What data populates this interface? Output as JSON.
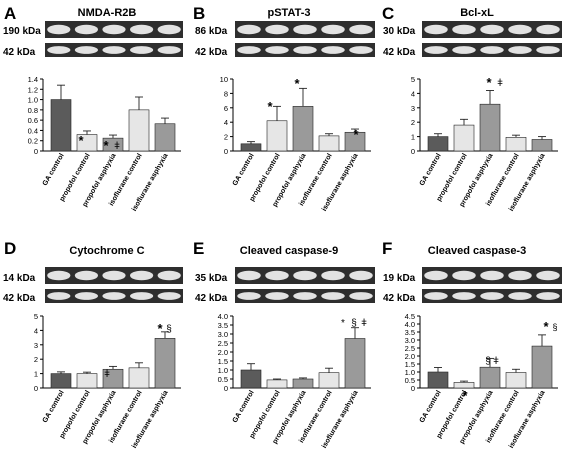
{
  "panels": [
    {
      "letter": "A",
      "title": "NMDA-R2B",
      "blot_labels": [
        "190 kDa",
        "42 kDa"
      ],
      "annotations": [
        "*",
        "*",
        "ǂ"
      ],
      "chart_data": {
        "type": "bar",
        "categories": [
          "GA control",
          "propofol control",
          "propofol asphyxia",
          "isoflurane control",
          "isoflurane asphyxia"
        ],
        "values": [
          1.0,
          0.32,
          0.25,
          0.8,
          0.53
        ],
        "errors": [
          0.28,
          0.07,
          0.06,
          0.25,
          0.11
        ],
        "ylim": [
          0,
          1.4
        ],
        "yticks": [
          "0",
          "0.2",
          "0.4",
          "0.6",
          "0.8",
          "1.0",
          "1.2",
          "1.4"
        ],
        "colors": [
          "#5b5b5b",
          "#e6e6e6",
          "#9a9a9a",
          "#e6e6e6",
          "#9a9a9a"
        ],
        "title": "NMDA-R2B"
      }
    },
    {
      "letter": "B",
      "title": "pSTAT-3",
      "blot_labels": [
        "86 kDa",
        "42 kDa"
      ],
      "annotations": [
        "*",
        "*",
        "*"
      ],
      "chart_data": {
        "type": "bar",
        "categories": [
          "GA control",
          "propofol control",
          "propofol asphyxia",
          "isoflurane control",
          "isoflurane asphyxia"
        ],
        "values": [
          1.0,
          4.2,
          6.2,
          2.1,
          2.6
        ],
        "errors": [
          0.3,
          2.0,
          2.5,
          0.3,
          0.45
        ],
        "ylim": [
          0,
          10
        ],
        "yticks": [
          "0",
          "2",
          "4",
          "6",
          "8",
          "10"
        ],
        "colors": [
          "#5b5b5b",
          "#e6e6e6",
          "#9a9a9a",
          "#e6e6e6",
          "#9a9a9a"
        ],
        "title": "pSTAT-3"
      }
    },
    {
      "letter": "C",
      "title": "Bcl-xL",
      "blot_labels": [
        "30 kDa",
        "42 kDa"
      ],
      "annotations": [
        "*",
        "ǂ"
      ],
      "chart_data": {
        "type": "bar",
        "categories": [
          "GA control",
          "propofol control",
          "propofol asphyxia",
          "isoflurane control",
          "isoflurane asphyxia"
        ],
        "values": [
          1.0,
          1.8,
          3.25,
          0.95,
          0.8
        ],
        "errors": [
          0.2,
          0.4,
          0.95,
          0.15,
          0.2
        ],
        "ylim": [
          0,
          5
        ],
        "yticks": [
          "0",
          "1",
          "2",
          "3",
          "4",
          "5"
        ],
        "colors": [
          "#5b5b5b",
          "#e6e6e6",
          "#9a9a9a",
          "#e6e6e6",
          "#9a9a9a"
        ],
        "title": "Bcl-xL"
      }
    },
    {
      "letter": "D",
      "title": "Cytochrome C",
      "blot_labels": [
        "14 kDa",
        "42 kDa"
      ],
      "annotations": [
        "ǂ",
        "*",
        "§"
      ],
      "chart_data": {
        "type": "bar",
        "categories": [
          "GA control",
          "propofol control",
          "propofol asphyxia",
          "isoflurane control",
          "isoflurane asphyxia"
        ],
        "values": [
          1.0,
          1.0,
          1.3,
          1.4,
          3.45
        ],
        "errors": [
          0.12,
          0.1,
          0.2,
          0.35,
          0.45
        ],
        "ylim": [
          0,
          5
        ],
        "yticks": [
          "0",
          "1",
          "2",
          "3",
          "4",
          "5"
        ],
        "colors": [
          "#5b5b5b",
          "#e6e6e6",
          "#9a9a9a",
          "#e6e6e6",
          "#9a9a9a"
        ],
        "title": "Cytochrome C"
      }
    },
    {
      "letter": "E",
      "title": "Cleaved caspase-9",
      "blot_labels": [
        "35 kDa",
        "42 kDa"
      ],
      "annotations": [
        "*",
        "§",
        "ǂ"
      ],
      "chart_data": {
        "type": "bar",
        "categories": [
          "GA control",
          "propofol control",
          "propofol asphyxia",
          "isoflurane control",
          "isoflurane asphyxia"
        ],
        "values": [
          1.0,
          0.45,
          0.5,
          0.85,
          2.75
        ],
        "errors": [
          0.35,
          0.05,
          0.06,
          0.25,
          0.6
        ],
        "ylim": [
          0,
          4.0
        ],
        "yticks": [
          "0",
          "0.5",
          "1.0",
          "1.5",
          "2.0",
          "2.5",
          "3.0",
          "3.5",
          "4.0"
        ],
        "colors": [
          "#5b5b5b",
          "#e6e6e6",
          "#9a9a9a",
          "#e6e6e6",
          "#9a9a9a"
        ],
        "title": "Cleaved caspase-9"
      }
    },
    {
      "letter": "F",
      "title": "Cleaved caspase-3",
      "blot_labels": [
        "19 kDa",
        "42 kDa"
      ],
      "annotations": [
        "*",
        "§",
        "ǂ",
        "*",
        "§"
      ],
      "chart_data": {
        "type": "bar",
        "categories": [
          "GA control",
          "propofol control",
          "propofol asphyxia",
          "isoflurane control",
          "isoflurane asphyxia"
        ],
        "values": [
          1.0,
          0.35,
          1.3,
          0.97,
          2.62
        ],
        "errors": [
          0.28,
          0.08,
          0.55,
          0.2,
          0.7
        ],
        "ylim": [
          0,
          4.5
        ],
        "yticks": [
          "0",
          "0.5",
          "1.0",
          "1.5",
          "2.0",
          "2.5",
          "3.0",
          "3.5",
          "4.0",
          "4.5"
        ],
        "colors": [
          "#5b5b5b",
          "#e6e6e6",
          "#9a9a9a",
          "#e6e6e6",
          "#9a9a9a"
        ],
        "title": "Cleaved caspase-3"
      }
    }
  ]
}
